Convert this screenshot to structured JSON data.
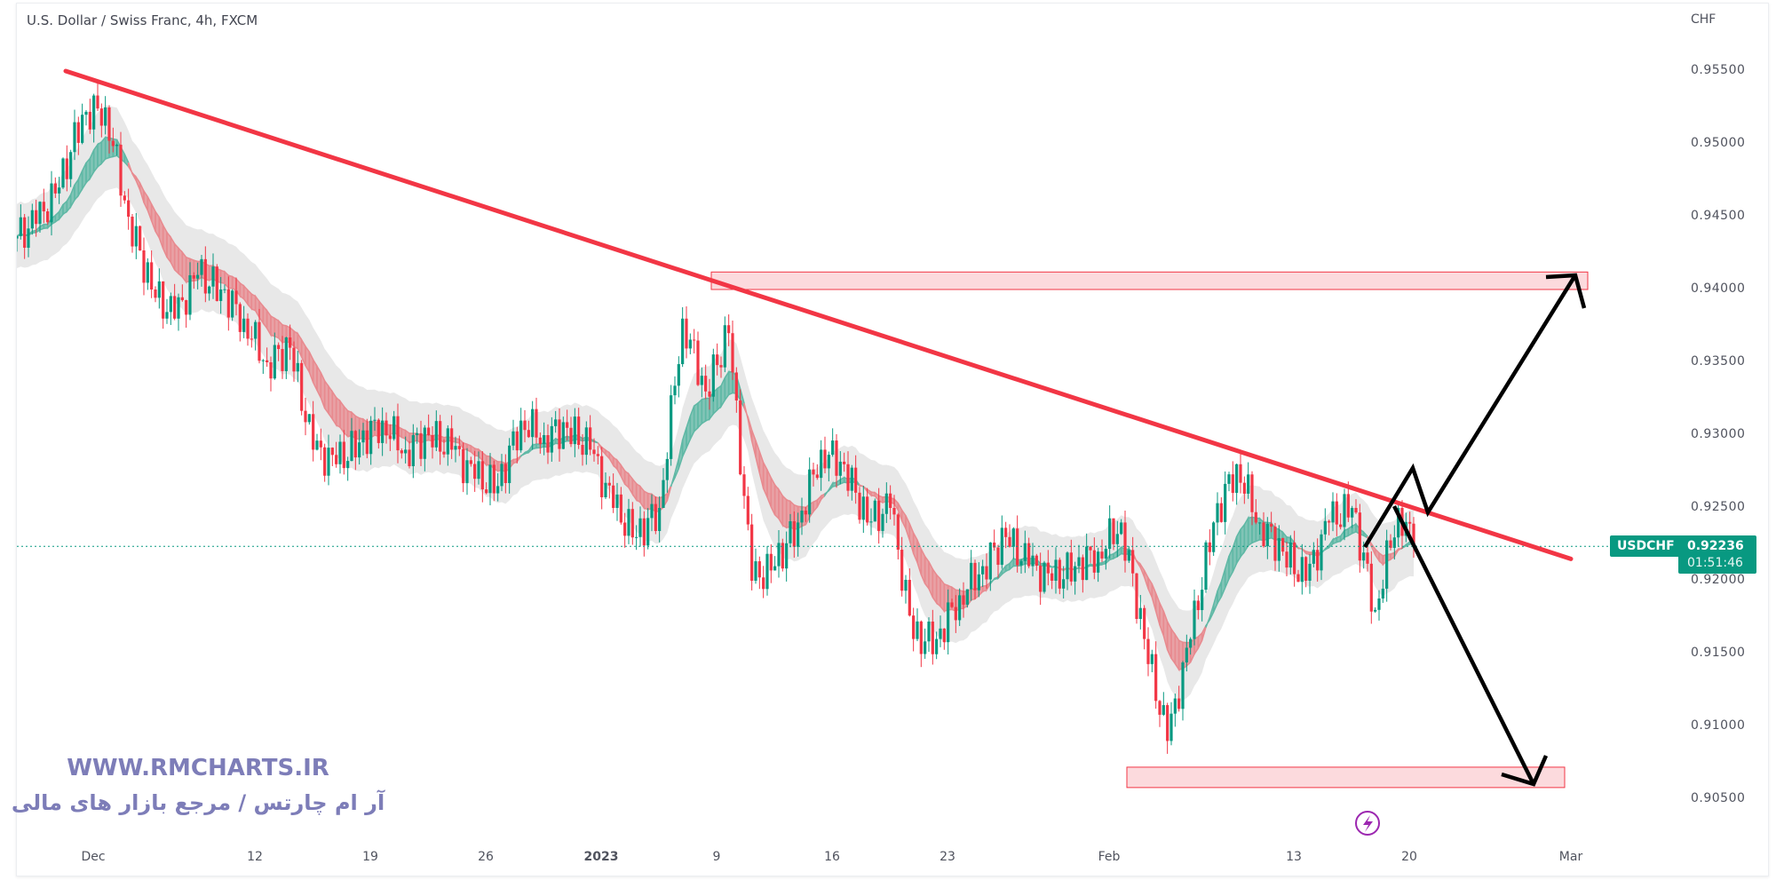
{
  "header": {
    "title": "U.S. Dollar / Swiss Franc, 4h, FXCM",
    "currency": "CHF"
  },
  "badge": {
    "symbol": "USDCHF",
    "price": "0.92236",
    "countdown": "01:51:46"
  },
  "watermark": {
    "url": "WWW.RMCHARTS.IR",
    "tagline": "آر ام چارتس / مرجع بازار های مالی"
  },
  "colors": {
    "up": "#089981",
    "down": "#f23645",
    "trendline": "#f23645",
    "zone_fill": "#fbd3d7",
    "zone_border": "#f23645",
    "projection": "#000000",
    "flash": "#9c27b0"
  },
  "chart_data": {
    "type": "candlestick",
    "title": "U.S. Dollar / Swiss Franc, 4h, FXCM",
    "ylabel": "CHF",
    "ylim": [
      0.9015,
      0.9585
    ],
    "y_ticks": [
      "0.95500",
      "0.95000",
      "0.94500",
      "0.94000",
      "0.93500",
      "0.93000",
      "0.92500",
      "0.92000",
      "0.91500",
      "0.91000",
      "0.90500"
    ],
    "x_ticks": [
      {
        "label": "Dec",
        "day": 4
      },
      {
        "label": "12",
        "day": 11
      },
      {
        "label": "19",
        "day": 16
      },
      {
        "label": "26",
        "day": 21
      },
      {
        "label": "2023",
        "day": 26
      },
      {
        "label": "9",
        "day": 31
      },
      {
        "label": "16",
        "day": 36
      },
      {
        "label": "23",
        "day": 41
      },
      {
        "label": "Feb",
        "day": 48
      },
      {
        "label": "13",
        "day": 56
      },
      {
        "label": "20",
        "day": 61
      },
      {
        "label": "Mar",
        "day": 68
      }
    ],
    "daily_close": [
      [
        "Nov 25",
        0.9445
      ],
      [
        "Nov 28",
        0.947
      ],
      [
        "Nov 29",
        0.952
      ],
      [
        "Nov 30",
        0.9525
      ],
      [
        "Dec 1",
        0.945
      ],
      [
        "Dec 2",
        0.94
      ],
      [
        "Dec 5",
        0.938
      ],
      [
        "Dec 6",
        0.941
      ],
      [
        "Dec 7",
        0.94
      ],
      [
        "Dec 8",
        0.938
      ],
      [
        "Dec 9",
        0.935
      ],
      [
        "Dec 12",
        0.936
      ],
      [
        "Dec 13",
        0.929
      ],
      [
        "Dec 14",
        0.928
      ],
      [
        "Dec 15",
        0.9295
      ],
      [
        "Dec 16",
        0.931
      ],
      [
        "Dec 19",
        0.929
      ],
      [
        "Dec 20",
        0.93
      ],
      [
        "Dec 21",
        0.929
      ],
      [
        "Dec 22",
        0.927
      ],
      [
        "Dec 23",
        0.9265
      ],
      [
        "Dec 26",
        0.931
      ],
      [
        "Dec 27",
        0.93
      ],
      [
        "Dec 28",
        0.9305
      ],
      [
        "Dec 29",
        0.929
      ],
      [
        "Dec 30",
        0.925
      ],
      [
        "Jan 2",
        0.923
      ],
      [
        "Jan 3",
        0.925
      ],
      [
        "Jan 4",
        0.938
      ],
      [
        "Jan 5",
        0.933
      ],
      [
        "Jan 6",
        0.937
      ],
      [
        "Jan 9",
        0.92
      ],
      [
        "Jan 10",
        0.921
      ],
      [
        "Jan 11",
        0.924
      ],
      [
        "Jan 12",
        0.929
      ],
      [
        "Jan 13",
        0.928
      ],
      [
        "Jan 16",
        0.924
      ],
      [
        "Jan 17",
        0.925
      ],
      [
        "Jan 18",
        0.916
      ],
      [
        "Jan 19",
        0.916
      ],
      [
        "Jan 20",
        0.919
      ],
      [
        "Jan 23",
        0.921
      ],
      [
        "Jan 24",
        0.923
      ],
      [
        "Jan 25",
        0.921
      ],
      [
        "Jan 26",
        0.92
      ],
      [
        "Jan 27",
        0.921
      ],
      [
        "Jan 30",
        0.922
      ],
      [
        "Jan 31",
        0.924
      ],
      [
        "Feb 1",
        0.916
      ],
      [
        "Feb 2",
        0.909
      ],
      [
        "Feb 3",
        0.916
      ],
      [
        "Feb 6",
        0.924
      ],
      [
        "Feb 7",
        0.928
      ],
      [
        "Feb 8",
        0.924
      ],
      [
        "Feb 9",
        0.922
      ],
      [
        "Feb 10",
        0.92
      ],
      [
        "Feb 13",
        0.924
      ],
      [
        "Feb 14",
        0.925
      ],
      [
        "Feb 15",
        0.918
      ],
      [
        "Feb 16",
        0.925
      ],
      [
        "Feb 17",
        0.92236
      ]
    ],
    "last_price": 0.92236,
    "trendline": {
      "from": [
        "Nov 30",
        0.955
      ],
      "to": [
        "Feb 28",
        0.9215
      ]
    },
    "resistance_zone": {
      "low": 0.94,
      "high": 0.9412,
      "from": "Jan 6",
      "to": "Mar 1"
    },
    "support_zone": {
      "low": 0.9058,
      "high": 0.9072,
      "from": "Feb 1",
      "to": "Feb 28"
    },
    "scenarios": [
      {
        "name": "breakout-up",
        "target": 0.9412
      },
      {
        "name": "breakdown",
        "target": 0.9058
      }
    ]
  }
}
